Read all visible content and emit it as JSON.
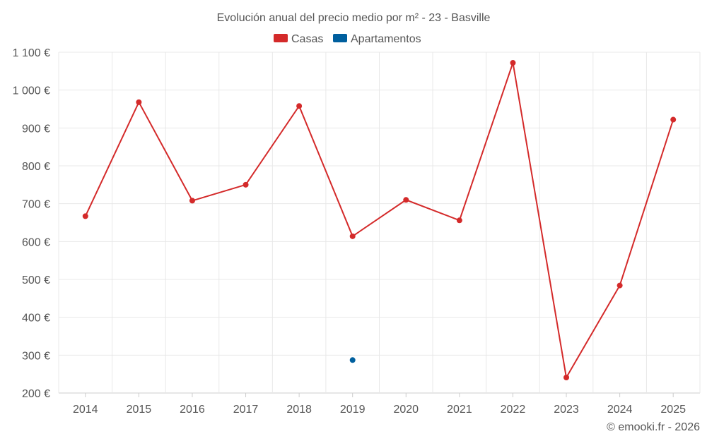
{
  "chart_data": {
    "type": "line",
    "title": "Evolución anual del precio medio por m² - 23 - Basville",
    "categories": [
      "2014",
      "2015",
      "2016",
      "2017",
      "2018",
      "2019",
      "2020",
      "2021",
      "2022",
      "2023",
      "2024",
      "2025"
    ],
    "y_ticks": [
      "200 €",
      "300 €",
      "400 €",
      "500 €",
      "600 €",
      "700 €",
      "800 €",
      "900 €",
      "1 000 €",
      "1 100 €"
    ],
    "ylim": [
      200,
      1100
    ],
    "grid": true,
    "legend_position": "top-center",
    "series": [
      {
        "name": "Casas",
        "color": "#d42a2a",
        "values": [
          667,
          968,
          708,
          750,
          958,
          614,
          710,
          656,
          1072,
          241,
          484,
          922
        ]
      },
      {
        "name": "Apartamentos",
        "color": "#005f9e",
        "values": [
          null,
          null,
          null,
          null,
          null,
          287,
          null,
          null,
          null,
          null,
          null,
          null
        ]
      }
    ]
  },
  "credit": "© emooki.fr - 2026"
}
